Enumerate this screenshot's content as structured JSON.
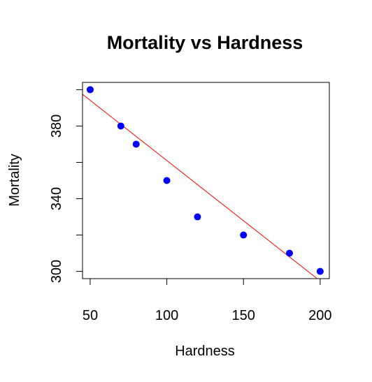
{
  "chart_data": {
    "type": "scatter",
    "title": "Mortality vs Hardness",
    "xlabel": "Hardness",
    "ylabel": "Mortality",
    "x": [
      50,
      70,
      80,
      100,
      120,
      150,
      180,
      200
    ],
    "y": [
      400,
      380,
      370,
      350,
      330,
      320,
      310,
      300
    ],
    "xlim": [
      45,
      206
    ],
    "ylim": [
      296,
      404
    ],
    "xticks": [
      50,
      100,
      150,
      200
    ],
    "yticks": [
      300,
      340,
      380
    ],
    "point_color": "#0000ff",
    "regression_line": {
      "intercept": 427.28,
      "slope": -0.6628,
      "color": "#ff0000"
    },
    "grid": false,
    "legend": "none"
  }
}
